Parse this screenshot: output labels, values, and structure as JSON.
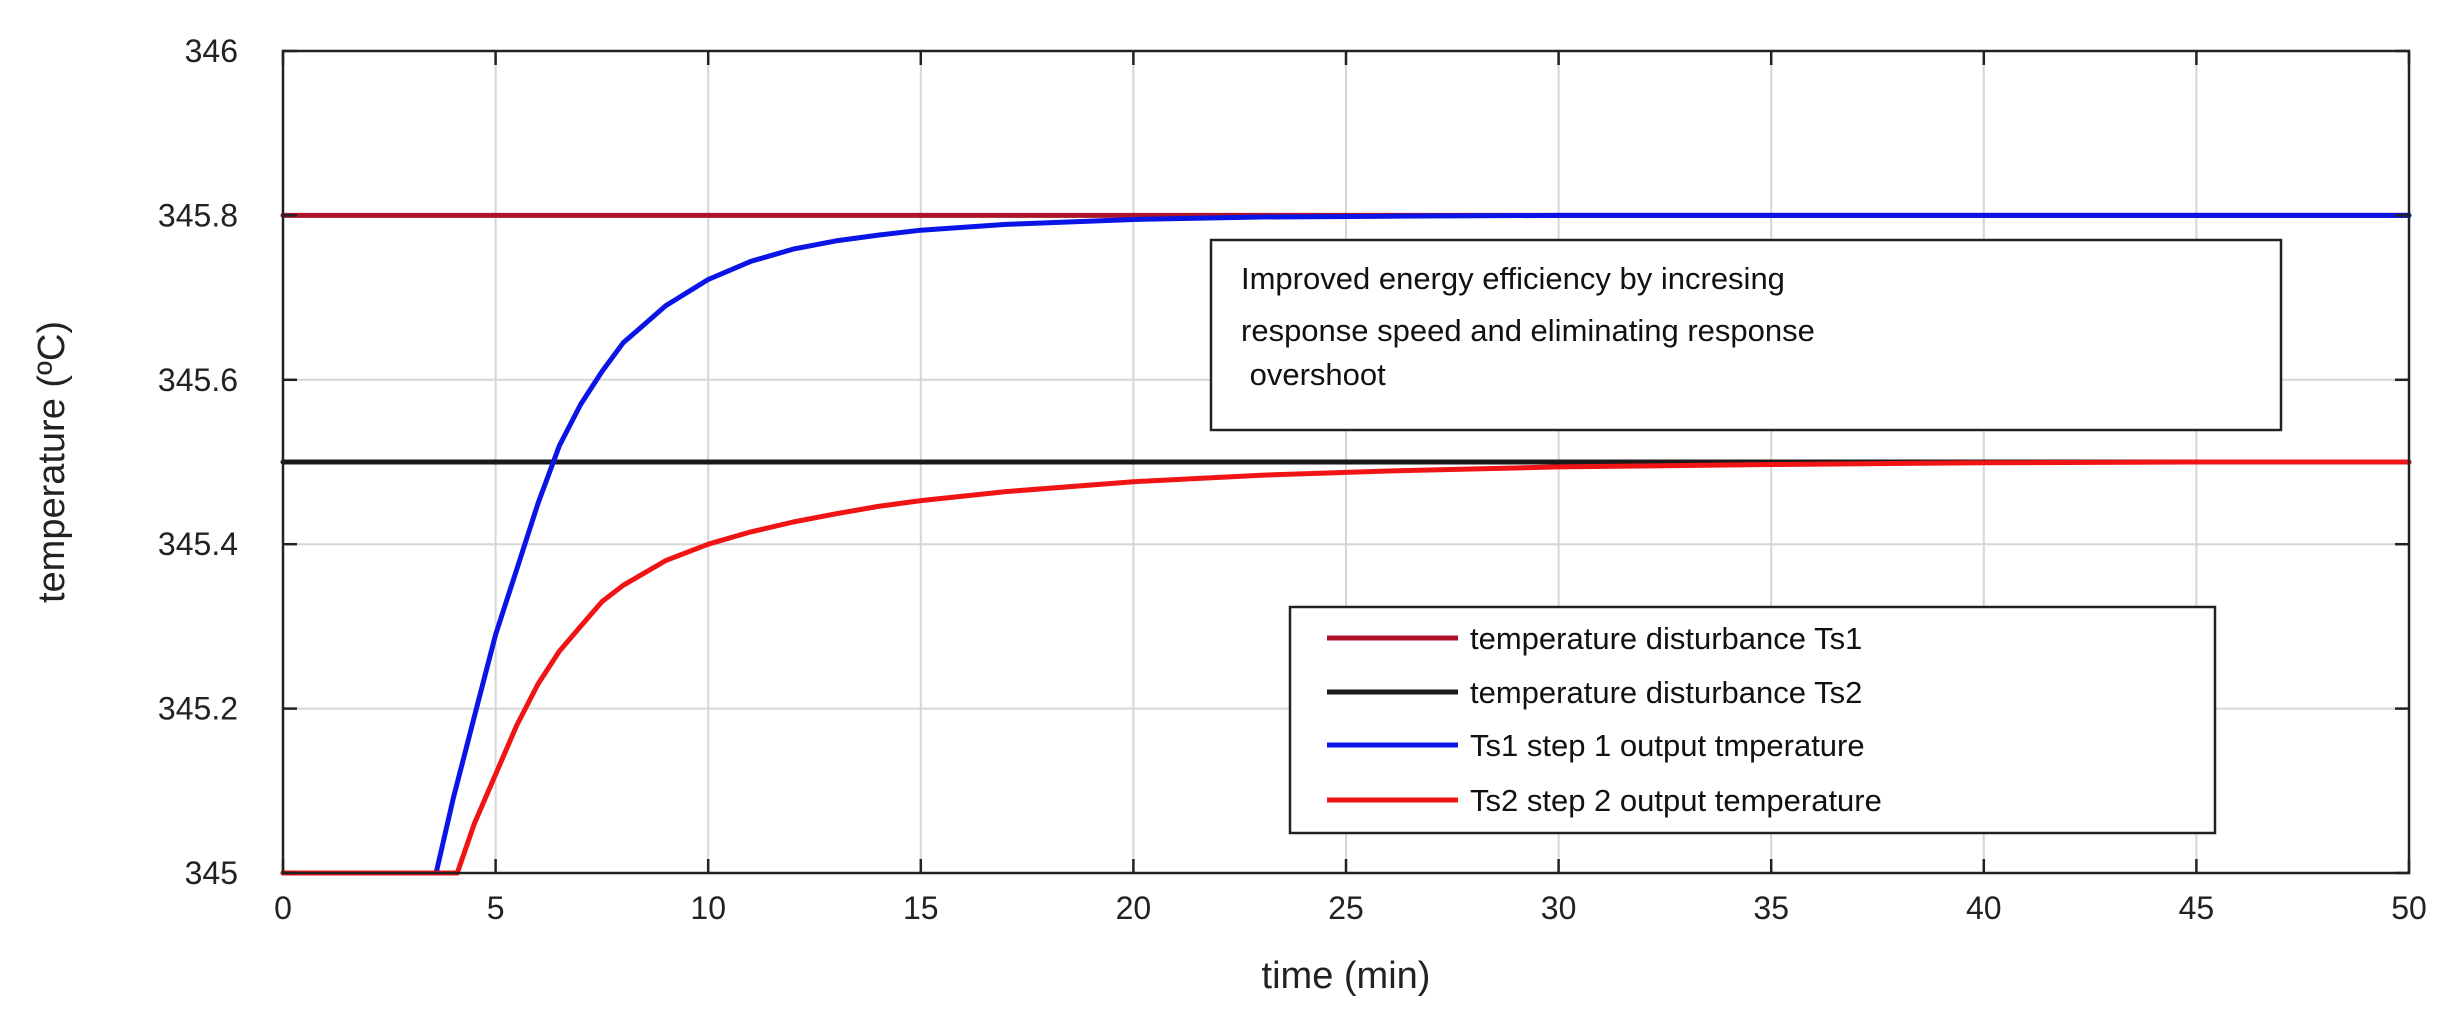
{
  "chart_data": {
    "type": "line",
    "title": "",
    "xlabel": "time (min)",
    "ylabel": "temperature (ºC)",
    "xlim": [
      0,
      50
    ],
    "ylim": [
      345,
      346
    ],
    "xticks": [
      0,
      5,
      10,
      15,
      20,
      25,
      30,
      35,
      40,
      45,
      50
    ],
    "xtick_labels": [
      "0",
      "5",
      "10",
      "15",
      "20",
      "25",
      "30",
      "35",
      "40",
      "45",
      "50"
    ],
    "yticks": [
      345,
      345.2,
      345.4,
      345.6,
      345.8,
      346
    ],
    "ytick_labels": [
      "345",
      "345.2",
      "345.4",
      "345.6",
      "345.8",
      "346"
    ],
    "grid": true,
    "legend_position": "lower-right",
    "annotation": {
      "lines": [
        "Improved energy efficiency by incresing",
        "response speed and eliminating response",
        " overshoot"
      ]
    },
    "series": [
      {
        "name": "temperature disturbance Ts1",
        "color": "#b0122a",
        "x": [
          0,
          50
        ],
        "y": [
          345.8,
          345.8
        ]
      },
      {
        "name": "temperature disturbance Ts2",
        "color": "#1a1a1a",
        "x": [
          0,
          50
        ],
        "y": [
          345.5,
          345.5
        ]
      },
      {
        "name": "Ts1 step 1 output tmperature",
        "color": "#0a14e6",
        "x": [
          0,
          3.6,
          4,
          4.5,
          5,
          5.5,
          6,
          6.5,
          7,
          7.5,
          8,
          9,
          10,
          11,
          12,
          13,
          14,
          15,
          17,
          20,
          23,
          26,
          30,
          35,
          40,
          45,
          50
        ],
        "y": [
          345,
          345,
          345.09,
          345.19,
          345.29,
          345.37,
          345.45,
          345.52,
          345.57,
          345.61,
          345.645,
          345.69,
          345.722,
          345.744,
          345.759,
          345.769,
          345.776,
          345.782,
          345.789,
          345.795,
          345.798,
          345.799,
          345.8,
          345.8,
          345.8,
          345.8,
          345.8
        ]
      },
      {
        "name": "Ts2 step 2 output temperature",
        "color": "#f01414",
        "x": [
          0,
          4.1,
          4.5,
          5,
          5.5,
          6,
          6.5,
          7,
          7.5,
          8,
          9,
          10,
          11,
          12,
          13,
          14,
          15,
          17,
          20,
          23,
          26,
          30,
          35,
          40,
          45,
          50
        ],
        "y": [
          345,
          345,
          345.06,
          345.12,
          345.18,
          345.23,
          345.27,
          345.3,
          345.33,
          345.35,
          345.38,
          345.4,
          345.415,
          345.427,
          345.437,
          345.446,
          345.453,
          345.464,
          345.476,
          345.484,
          345.489,
          345.494,
          345.497,
          345.499,
          345.5,
          345.5
        ]
      }
    ]
  }
}
